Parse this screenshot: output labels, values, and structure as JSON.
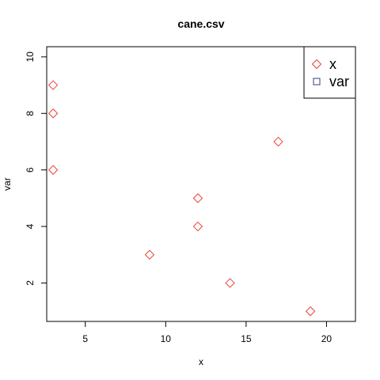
{
  "chart_data": {
    "type": "scatter",
    "title": "cane.csv",
    "xlabel": "x",
    "ylabel": "var",
    "xlim": [
      2.6,
      21.8
    ],
    "ylim": [
      0.64,
      10.36
    ],
    "x_ticks": [
      5,
      10,
      15,
      20
    ],
    "y_ticks": [
      2,
      4,
      6,
      8,
      10
    ],
    "grid": false,
    "legend_position": "top-right",
    "series": [
      {
        "name": "x",
        "marker": "diamond",
        "color": "#e8423a",
        "x": [
          3,
          3,
          3,
          9,
          12,
          12,
          14,
          17,
          19
        ],
        "y": [
          9,
          8,
          6,
          3,
          5,
          4,
          2,
          7,
          1
        ]
      },
      {
        "name": "var",
        "marker": "square",
        "color": "#3b3b8f",
        "x": [],
        "y": []
      }
    ]
  }
}
